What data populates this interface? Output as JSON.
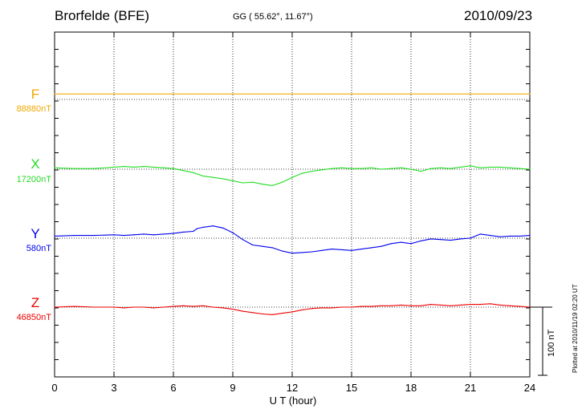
{
  "header": {
    "station": "Brorfelde (BFE)",
    "coords": "GG ( 55.62°,  11.67°)",
    "date": "2010/09/23"
  },
  "xaxis": {
    "label": "U T (hour)",
    "ticks": [
      "0",
      "3",
      "6",
      "9",
      "12",
      "15",
      "18",
      "21",
      "24"
    ]
  },
  "side": {
    "plotted": "Plotted at 2010/11/19 02:20 UT",
    "scale": "100 nT"
  },
  "chart_data": {
    "type": "line",
    "title": "Brorfelde (BFE)",
    "xlabel": "U T (hour)",
    "xlim": [
      0,
      24
    ],
    "grid": true,
    "scale_bar_nT": 100,
    "series": [
      {
        "name": "F",
        "baseline_label": "88880nT",
        "color": "#f0a800",
        "x": [
          0,
          24
        ],
        "y": [
          8,
          8
        ]
      },
      {
        "name": "X",
        "baseline_label": "17200nT",
        "color": "#22dd22",
        "x": [
          0,
          1,
          2,
          3,
          3.5,
          4,
          4.5,
          5,
          5.5,
          6,
          6.5,
          7,
          7.5,
          8,
          8.5,
          9,
          9.5,
          10,
          10.5,
          11,
          11.5,
          12,
          12.5,
          13,
          13.5,
          14,
          14.5,
          15,
          15.5,
          16,
          16.5,
          17,
          17.5,
          18,
          18.5,
          19,
          19.5,
          20,
          20.5,
          21,
          21.5,
          22,
          22.5,
          23,
          23.5,
          24
        ],
        "y": [
          2,
          1,
          1,
          3,
          4,
          3,
          4,
          3,
          2,
          1,
          -2,
          -5,
          -10,
          -12,
          -14,
          -17,
          -20,
          -19,
          -22,
          -24,
          -19,
          -12,
          -6,
          -3,
          -1,
          1,
          2,
          1,
          1,
          2,
          0,
          1,
          2,
          0,
          -3,
          1,
          2,
          1,
          3,
          5,
          2,
          3,
          3,
          2,
          1,
          0
        ]
      },
      {
        "name": "Y",
        "baseline_label": "580nT",
        "color": "#0000ee",
        "x": [
          0,
          1,
          2,
          3,
          3.5,
          4,
          4.5,
          5,
          5.5,
          6,
          6.5,
          7,
          7.2,
          7.5,
          8,
          8.5,
          9,
          9.5,
          10,
          10.5,
          11,
          11.5,
          12,
          12.5,
          13,
          13.5,
          14,
          14.5,
          15,
          15.5,
          16,
          16.5,
          17,
          17.5,
          18,
          18.5,
          19,
          19.5,
          20,
          20.5,
          21,
          21.5,
          22,
          22.5,
          23,
          23.5,
          24
        ],
        "y": [
          3,
          4,
          4,
          5,
          4,
          5,
          6,
          5,
          6,
          7,
          9,
          10,
          14,
          16,
          18,
          15,
          8,
          -2,
          -10,
          -12,
          -14,
          -19,
          -22,
          -21,
          -20,
          -18,
          -16,
          -17,
          -18,
          -16,
          -14,
          -12,
          -8,
          -6,
          -8,
          -4,
          -1,
          -2,
          -3,
          -1,
          0,
          6,
          4,
          2,
          3,
          3,
          4
        ]
      },
      {
        "name": "Z",
        "baseline_label": "46850nT",
        "color": "#ee0000",
        "x": [
          0,
          1,
          2,
          3,
          3.5,
          4,
          4.5,
          5,
          5.5,
          6,
          6.5,
          7,
          7.5,
          8,
          8.5,
          9,
          9.5,
          10,
          10.5,
          11,
          11.5,
          12,
          12.5,
          13,
          13.5,
          14,
          14.5,
          15,
          15.5,
          16,
          16.5,
          17,
          17.5,
          18,
          18.5,
          19,
          19.5,
          20,
          20.5,
          21,
          21.5,
          22,
          22.5,
          23,
          23.5,
          24
        ],
        "y": [
          0,
          1,
          0,
          0,
          -1,
          0,
          0,
          -1,
          0,
          1,
          2,
          1,
          2,
          0,
          -1,
          -3,
          -6,
          -8,
          -10,
          -11,
          -9,
          -7,
          -4,
          -2,
          -1,
          -1,
          0,
          0,
          1,
          1,
          2,
          2,
          3,
          2,
          2,
          4,
          3,
          2,
          3,
          4,
          4,
          5,
          3,
          2,
          1,
          0
        ]
      }
    ]
  }
}
